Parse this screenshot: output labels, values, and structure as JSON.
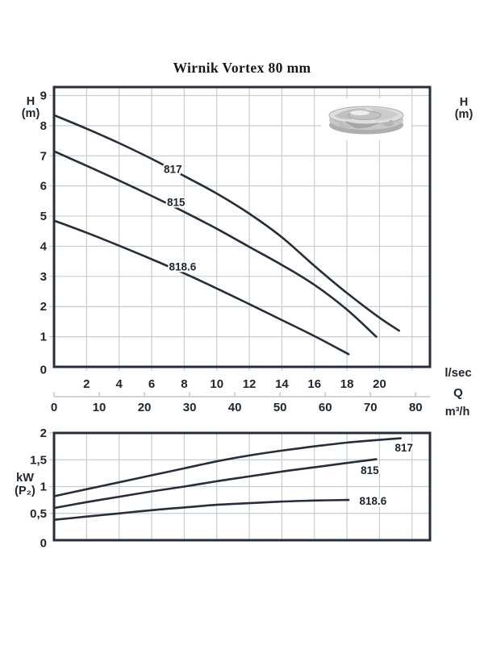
{
  "title": "Wirnik Vortex 80 mm",
  "labels": {
    "head_axis_left_line1": "H",
    "head_axis_left_line2": "(m)",
    "head_axis_right_line1": "H",
    "head_axis_right_line2": "(m)",
    "flow_unit_primary": "l/sec",
    "flow_symbol": "Q",
    "flow_unit_secondary": "m³/h",
    "power_unit_line1": "kW",
    "power_unit_line2": "(P₂)"
  },
  "images": {
    "impeller": "gray 3D render of vortex impeller"
  },
  "colors": {
    "curve": "#272e3a",
    "border": "#272e3a",
    "grid": "#c9cdd0",
    "ruler": "#c2c6ca",
    "text": "#20262e",
    "background": "#ffffff"
  },
  "chart_data": [
    {
      "type": "line",
      "title": "Wirnik Vortex 80 mm",
      "ylabel": "H (m)",
      "xlabel": "Q",
      "x_unit": "l/sec",
      "xlim": [
        0,
        23.1
      ],
      "ylim": [
        0,
        9.28
      ],
      "grid": true,
      "x_ticks": [
        2,
        4,
        6,
        8,
        10,
        12,
        14,
        16,
        18,
        20
      ],
      "x_axis_secondary": {
        "unit": "m³/h",
        "ticks": [
          0,
          10,
          20,
          30,
          40,
          50,
          60,
          70,
          80
        ],
        "lsec_per_m3h": 0.27778
      },
      "y_ticks": [
        {
          "v": 9,
          "label": "9"
        },
        {
          "v": 8,
          "label": "8"
        },
        {
          "v": 7,
          "label": "7"
        },
        {
          "v": 6,
          "label": "6"
        },
        {
          "v": 5,
          "label": "5"
        },
        {
          "v": 4,
          "label": "4"
        },
        {
          "v": 3,
          "label": "3"
        },
        {
          "v": 2,
          "label": "2"
        },
        {
          "v": 1,
          "label": "1"
        },
        {
          "v": 0,
          "label": "0"
        }
      ],
      "series": [
        {
          "name": "817",
          "label_at": [
            7.3,
            6.55
          ],
          "points": [
            [
              0,
              8.35
            ],
            [
              2,
              7.9
            ],
            [
              4,
              7.42
            ],
            [
              6,
              6.9
            ],
            [
              8,
              6.33
            ],
            [
              10,
              5.75
            ],
            [
              12,
              5.08
            ],
            [
              14,
              4.3
            ],
            [
              16,
              3.35
            ],
            [
              18,
              2.45
            ],
            [
              20,
              1.63
            ],
            [
              21.2,
              1.2
            ]
          ]
        },
        {
          "name": "815",
          "label_at": [
            7.5,
            5.45
          ],
          "points": [
            [
              0,
              7.15
            ],
            [
              2,
              6.67
            ],
            [
              4,
              6.18
            ],
            [
              6,
              5.67
            ],
            [
              8,
              5.14
            ],
            [
              10,
              4.58
            ],
            [
              12,
              3.98
            ],
            [
              14,
              3.38
            ],
            [
              16,
              2.72
            ],
            [
              18,
              1.9
            ],
            [
              19.8,
              1.0
            ]
          ]
        },
        {
          "name": "818.6",
          "label_at": [
            7.9,
            3.32
          ],
          "points": [
            [
              0,
              4.85
            ],
            [
              2,
              4.45
            ],
            [
              4,
              4.02
            ],
            [
              6,
              3.57
            ],
            [
              8,
              3.1
            ],
            [
              10,
              2.6
            ],
            [
              12,
              2.08
            ],
            [
              14,
              1.55
            ],
            [
              16,
              1.02
            ],
            [
              18.1,
              0.42
            ]
          ]
        }
      ]
    },
    {
      "type": "line",
      "title": "",
      "ylabel": "kW (P₂)",
      "xlabel": "Q",
      "x_unit": "l/sec",
      "xlim": [
        0,
        23.1
      ],
      "ylim": [
        0,
        2
      ],
      "grid": true,
      "x_ticks": [],
      "y_ticks": [
        {
          "v": 2,
          "label": "2"
        },
        {
          "v": 1.5,
          "label": "1,5"
        },
        {
          "v": 1,
          "label": "1"
        },
        {
          "v": 0.5,
          "label": "0,5"
        },
        {
          "v": 0,
          "label": "0"
        }
      ],
      "series": [
        {
          "name": "817",
          "label_at": [
            21.5,
            1.72
          ],
          "points": [
            [
              0,
              0.82
            ],
            [
              2,
              0.95
            ],
            [
              4,
              1.08
            ],
            [
              6,
              1.21
            ],
            [
              8,
              1.34
            ],
            [
              10,
              1.47
            ],
            [
              12,
              1.58
            ],
            [
              14,
              1.67
            ],
            [
              16,
              1.75
            ],
            [
              18,
              1.82
            ],
            [
              20,
              1.87
            ],
            [
              21.3,
              1.9
            ]
          ]
        },
        {
          "name": "815",
          "label_at": [
            19.4,
            1.3
          ],
          "points": [
            [
              0,
              0.6
            ],
            [
              2,
              0.71
            ],
            [
              4,
              0.81
            ],
            [
              6,
              0.91
            ],
            [
              8,
              1.0
            ],
            [
              10,
              1.1
            ],
            [
              12,
              1.19
            ],
            [
              14,
              1.28
            ],
            [
              16,
              1.36
            ],
            [
              18,
              1.44
            ],
            [
              19.8,
              1.51
            ]
          ]
        },
        {
          "name": "818.6",
          "label_at": [
            19.6,
            0.73
          ],
          "points": [
            [
              0,
              0.38
            ],
            [
              2,
              0.44
            ],
            [
              4,
              0.5
            ],
            [
              6,
              0.56
            ],
            [
              8,
              0.61
            ],
            [
              10,
              0.66
            ],
            [
              12,
              0.69
            ],
            [
              14,
              0.72
            ],
            [
              16,
              0.74
            ],
            [
              18.1,
              0.75
            ]
          ]
        }
      ]
    }
  ]
}
